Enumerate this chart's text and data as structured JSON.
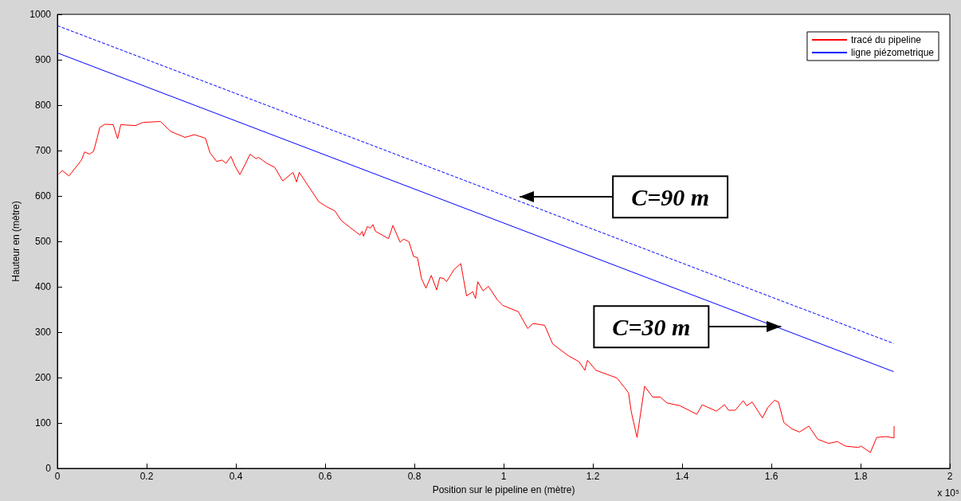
{
  "chart_data": {
    "type": "line",
    "xlabel": "Position sur le pipeline en (mètre)",
    "ylabel": "Hauteur en (mètre)",
    "xlim": [
      0,
      2
    ],
    "xticks": [
      0,
      0.2,
      0.4,
      0.6,
      0.8,
      1,
      1.2,
      1.4,
      1.6,
      1.8,
      2
    ],
    "ylim": [
      0,
      1000
    ],
    "yticks": [
      0,
      100,
      200,
      300,
      400,
      500,
      600,
      700,
      800,
      900,
      1000
    ],
    "grid": false,
    "legend": "top right",
    "marker": "none",
    "annotations": [
      "x 10⁵",
      {
        "text": "C=90 m",
        "x": 1.036,
        "y": 598
      },
      {
        "text": "C=30 m",
        "x": 1.622,
        "y": 312
      }
    ],
    "series": [
      {
        "name": "tracé du pipeline",
        "color": "#ff0000",
        "line_style": "solid",
        "x": [
          0.003,
          0.011,
          0.026,
          0.054,
          0.061,
          0.072,
          0.081,
          0.089,
          0.095,
          0.107,
          0.125,
          0.135,
          0.142,
          0.175,
          0.192,
          0.231,
          0.254,
          0.286,
          0.307,
          0.332,
          0.342,
          0.357,
          0.369,
          0.378,
          0.389,
          0.398,
          0.409,
          0.421,
          0.432,
          0.445,
          0.451,
          0.469,
          0.487,
          0.505,
          0.528,
          0.536,
          0.542,
          0.563,
          0.586,
          0.604,
          0.622,
          0.636,
          0.654,
          0.678,
          0.683,
          0.686,
          0.695,
          0.701,
          0.707,
          0.713,
          0.742,
          0.752,
          0.768,
          0.776,
          0.788,
          0.798,
          0.807,
          0.816,
          0.826,
          0.838,
          0.85,
          0.857,
          0.866,
          0.872,
          0.889,
          0.904,
          0.917,
          0.931,
          0.937,
          0.942,
          0.954,
          0.966,
          0.986,
          0.998,
          1.033,
          1.054,
          1.066,
          1.092,
          1.11,
          1.145,
          1.169,
          1.182,
          1.188,
          1.207,
          1.254,
          1.271,
          1.28,
          1.286,
          1.299,
          1.316,
          1.334,
          1.351,
          1.366,
          1.395,
          1.433,
          1.445,
          1.477,
          1.495,
          1.504,
          1.519,
          1.537,
          1.545,
          1.557,
          1.58,
          1.592,
          1.607,
          1.616,
          1.628,
          1.646,
          1.663,
          1.684,
          1.704,
          1.728,
          1.748,
          1.766,
          1.795,
          1.801,
          1.822,
          1.836,
          1.857,
          1.875,
          1.875
        ],
        "values": [
          648,
          656,
          644,
          679,
          697,
          692,
          698,
          727,
          751,
          758,
          757,
          726,
          757,
          755,
          762,
          764,
          742,
          729,
          735,
          727,
          695,
          676,
          679,
          672,
          687,
          666,
          647,
          670,
          692,
          682,
          685,
          672,
          663,
          633,
          652,
          631,
          652,
          621,
          587,
          576,
          567,
          546,
          532,
          514,
          522,
          511,
          533,
          529,
          537,
          522,
          506,
          535,
          498,
          505,
          499,
          467,
          464,
          418,
          397,
          425,
          393,
          420,
          418,
          411,
          438,
          451,
          380,
          389,
          374,
          411,
          391,
          401,
          371,
          359,
          345,
          308,
          319,
          315,
          274,
          248,
          235,
          216,
          238,
          216,
          199,
          178,
          166,
          125,
          68,
          181,
          157,
          157,
          144,
          138,
          119,
          140,
          126,
          140,
          128,
          128,
          149,
          138,
          146,
          111,
          134,
          150,
          146,
          101,
          87,
          80,
          93,
          64,
          55,
          59,
          49,
          46,
          49,
          35,
          68,
          70,
          67,
          93
        ]
      },
      {
        "name": "ligne piézometrique",
        "color": "#0000ff",
        "line_style": "solid",
        "x": [
          0,
          1.874
        ],
        "values": [
          915,
          213
        ]
      },
      {
        "color": "#0000ff",
        "line_style": "dashed",
        "x": [
          0,
          1.874
        ],
        "values": [
          975,
          275
        ]
      }
    ]
  }
}
